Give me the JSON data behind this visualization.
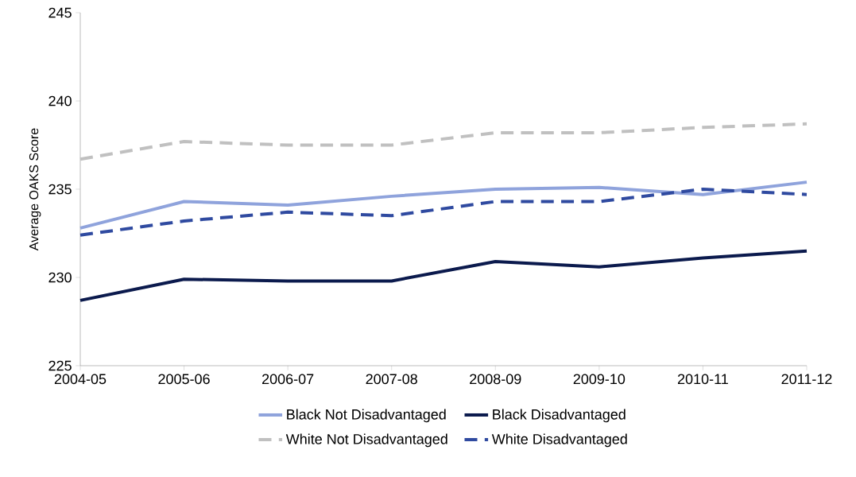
{
  "chart_data": {
    "type": "line",
    "ylabel": "Average OAKS Score",
    "categories": [
      "2004-05",
      "2005-06",
      "2006-07",
      "2007-08",
      "2008-09",
      "2009-10",
      "2010-11",
      "2011-12"
    ],
    "series": [
      {
        "name": "Black Not Disadvantaged",
        "color": "#8fa3dc",
        "line_style": "solid",
        "values": [
          232.8,
          234.3,
          234.1,
          234.6,
          235.0,
          235.1,
          234.7,
          235.4
        ]
      },
      {
        "name": "Black Disadvantaged",
        "color": "#0b1a4d",
        "line_style": "solid",
        "values": [
          228.7,
          229.9,
          229.8,
          229.8,
          230.9,
          230.6,
          231.1,
          231.5
        ]
      },
      {
        "name": "White Not Disadvantaged",
        "color": "#c0c0c0",
        "line_style": "dashed",
        "values": [
          236.7,
          237.7,
          237.5,
          237.5,
          238.2,
          238.2,
          238.5,
          238.7
        ]
      },
      {
        "name": "White Disadvantaged",
        "color": "#2f4aa0",
        "line_style": "dashed",
        "values": [
          232.4,
          233.2,
          233.7,
          233.5,
          234.3,
          234.3,
          235.0,
          234.7
        ]
      }
    ],
    "ylim": [
      225,
      245
    ],
    "yticks": [
      225,
      230,
      235,
      240,
      245
    ],
    "grid": false,
    "legend": "bottom",
    "marker": "none"
  }
}
